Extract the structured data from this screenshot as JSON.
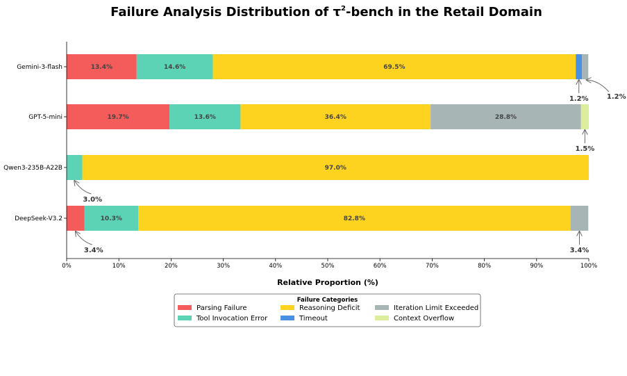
{
  "chart_data": {
    "type": "bar",
    "orientation": "horizontal",
    "stacked": true,
    "title": "Failure Analysis Distribution of τ²-bench in the Retail Domain",
    "title_prefix": "Failure Analysis Distribution of τ",
    "title_superscript": "2",
    "title_suffix": "-bench in the Retail Domain",
    "xlabel": "Relative Proportion (%)",
    "ylabel": "",
    "xlim": [
      0,
      100
    ],
    "x_tick_labels": [
      "0%",
      "10%",
      "20%",
      "30%",
      "40%",
      "50%",
      "60%",
      "70%",
      "80%",
      "90%",
      "100%"
    ],
    "categories": [
      "Gemini-3-flash",
      "GPT-5-mini",
      "Qwen3-235B-A22B",
      "DeepSeek-V3.2"
    ],
    "series": [
      {
        "name": "Parsing Failure",
        "color": "#f45b5b",
        "values": [
          13.4,
          19.7,
          0,
          3.4
        ]
      },
      {
        "name": "Tool Invocation Error",
        "color": "#5cd3b5",
        "values": [
          14.6,
          13.6,
          3.0,
          10.3
        ]
      },
      {
        "name": "Reasoning Deficit",
        "color": "#fdd31f",
        "values": [
          69.5,
          36.4,
          97.0,
          82.8
        ]
      },
      {
        "name": "Timeout",
        "color": "#4a90e2",
        "values": [
          1.2,
          0,
          0,
          0
        ]
      },
      {
        "name": "Iteration Limit Exceeded",
        "color": "#a8b5b5",
        "values": [
          1.2,
          28.8,
          0,
          3.4
        ]
      },
      {
        "name": "Context Overflow",
        "color": "#dcee9c",
        "values": [
          0,
          1.5,
          0,
          0
        ]
      }
    ],
    "inside_labels": [
      {
        "category": 0,
        "series": 0,
        "text": "13.4%"
      },
      {
        "category": 0,
        "series": 1,
        "text": "14.6%"
      },
      {
        "category": 0,
        "series": 2,
        "text": "69.5%"
      },
      {
        "category": 1,
        "series": 0,
        "text": "19.7%"
      },
      {
        "category": 1,
        "series": 1,
        "text": "13.6%"
      },
      {
        "category": 1,
        "series": 2,
        "text": "36.4%"
      },
      {
        "category": 1,
        "series": 4,
        "text": "28.8%"
      },
      {
        "category": 2,
        "series": 2,
        "text": "97.0%"
      },
      {
        "category": 3,
        "series": 1,
        "text": "10.3%"
      },
      {
        "category": 3,
        "series": 2,
        "text": "82.8%"
      }
    ],
    "callout_labels": [
      {
        "category": 0,
        "series": 3,
        "text": "1.2%",
        "side": "below"
      },
      {
        "category": 0,
        "series": 4,
        "text": "1.2%",
        "side": "right"
      },
      {
        "category": 1,
        "series": 5,
        "text": "1.5%",
        "side": "below"
      },
      {
        "category": 2,
        "series": 1,
        "text": "3.0%",
        "side": "below"
      },
      {
        "category": 3,
        "series": 0,
        "text": "3.4%",
        "side": "below"
      },
      {
        "category": 3,
        "series": 4,
        "text": "3.4%",
        "side": "below"
      }
    ],
    "legend": {
      "title": "Failure Categories",
      "placement": "bottom-center",
      "order": [
        0,
        1,
        2,
        3,
        4,
        5
      ]
    },
    "grid": false
  }
}
